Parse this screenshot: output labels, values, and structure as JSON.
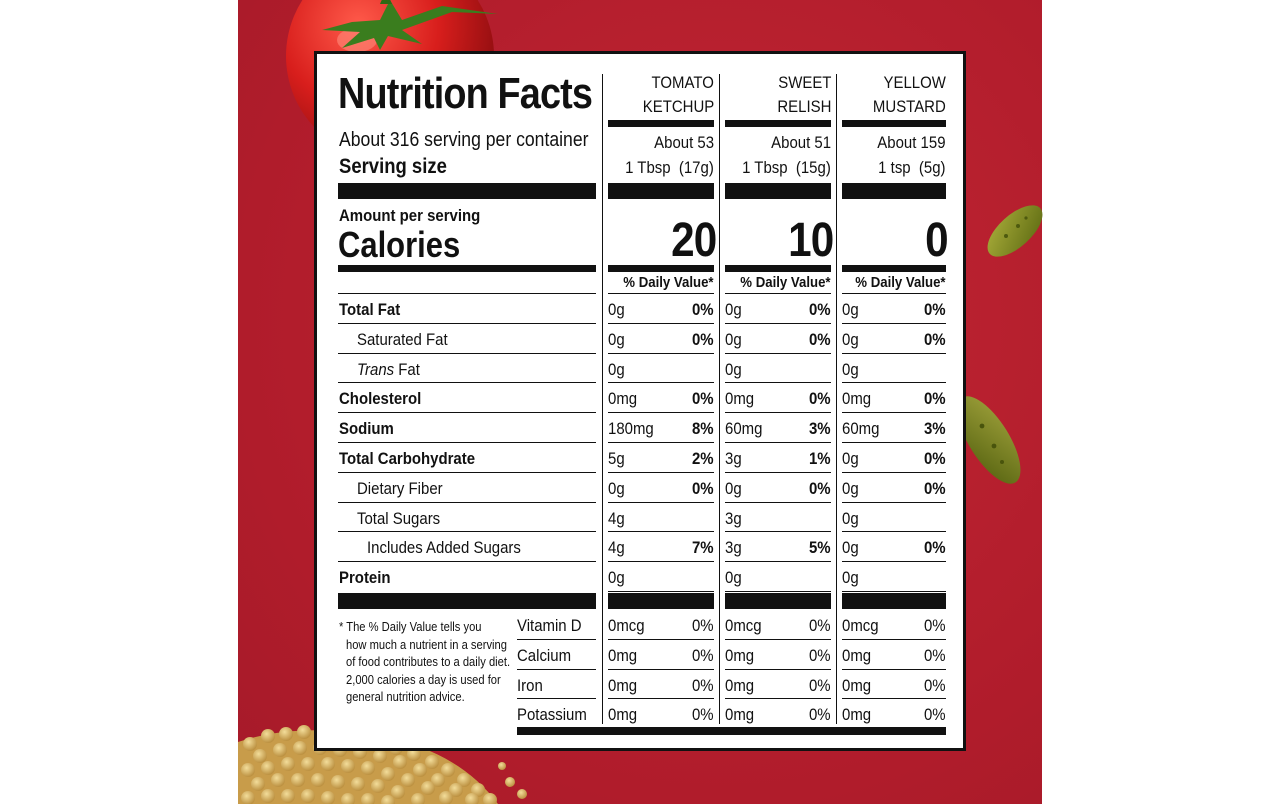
{
  "title": "Nutrition Facts",
  "servings_per_container": "About 316 serving per container",
  "serving_size_label": "Serving size",
  "amount_per_serving": "Amount per serving",
  "calories_label": "Calories",
  "dv_header": "% Daily Value*",
  "products": [
    {
      "name_line1": "TOMATO",
      "name_line2": "KETCHUP",
      "servings": "About 53",
      "serving_size": "1 Tbsp  (17g)",
      "calories": "20"
    },
    {
      "name_line1": "SWEET",
      "name_line2": "RELISH",
      "servings": "About 51",
      "serving_size": "1 Tbsp  (15g)",
      "calories": "10"
    },
    {
      "name_line1": "YELLOW",
      "name_line2": "MUSTARD",
      "servings": "About 159",
      "serving_size": "1 tsp  (5g)",
      "calories": "0"
    }
  ],
  "nutrients": [
    {
      "label": "Total Fat",
      "values": [
        [
          "0g",
          "0%"
        ],
        [
          "0g",
          "0%"
        ],
        [
          "0g",
          "0%"
        ]
      ]
    },
    {
      "label": "Saturated Fat",
      "values": [
        [
          "0g",
          "0%"
        ],
        [
          "0g",
          "0%"
        ],
        [
          "0g",
          "0%"
        ]
      ]
    },
    {
      "label": "Trans",
      "label_suffix": " Fat",
      "values": [
        [
          "0g",
          ""
        ],
        [
          "0g",
          ""
        ],
        [
          "0g",
          ""
        ]
      ]
    },
    {
      "label": "Cholesterol",
      "values": [
        [
          "0mg",
          "0%"
        ],
        [
          "0mg",
          "0%"
        ],
        [
          "0mg",
          "0%"
        ]
      ]
    },
    {
      "label": "Sodium",
      "values": [
        [
          "180mg",
          "8%"
        ],
        [
          "60mg",
          "3%"
        ],
        [
          "60mg",
          "3%"
        ]
      ]
    },
    {
      "label": "Total Carbohydrate",
      "values": [
        [
          "5g",
          "2%"
        ],
        [
          "3g",
          "1%"
        ],
        [
          "0g",
          "0%"
        ]
      ]
    },
    {
      "label": "Dietary Fiber",
      "values": [
        [
          "0g",
          "0%"
        ],
        [
          "0g",
          "0%"
        ],
        [
          "0g",
          "0%"
        ]
      ]
    },
    {
      "label": "Total Sugars",
      "values": [
        [
          "4g",
          ""
        ],
        [
          "3g",
          ""
        ],
        [
          "0g",
          ""
        ]
      ]
    },
    {
      "label": "Includes Added Sugars",
      "values": [
        [
          "4g",
          "7%"
        ],
        [
          "3g",
          "5%"
        ],
        [
          "0g",
          "0%"
        ]
      ]
    },
    {
      "label": "Protein",
      "values": [
        [
          "0g",
          ""
        ],
        [
          "0g",
          ""
        ],
        [
          "0g",
          ""
        ]
      ]
    }
  ],
  "vitamins": [
    {
      "label": "Vitamin D",
      "values": [
        [
          "0mcg",
          "0%"
        ],
        [
          "0mcg",
          "0%"
        ],
        [
          "0mcg",
          "0%"
        ]
      ]
    },
    {
      "label": "Calcium",
      "values": [
        [
          "0mg",
          "0%"
        ],
        [
          "0mg",
          "0%"
        ],
        [
          "0mg",
          "0%"
        ]
      ]
    },
    {
      "label": "Iron",
      "values": [
        [
          "0mg",
          "0%"
        ],
        [
          "0mg",
          "0%"
        ],
        [
          "0mg",
          "0%"
        ]
      ]
    },
    {
      "label": "Potassium",
      "values": [
        [
          "0mg",
          "0%"
        ],
        [
          "0mg",
          "0%"
        ],
        [
          "0mg",
          "0%"
        ]
      ]
    }
  ],
  "footnote": [
    "* The % Daily Value tells you",
    "how much a nutrient in a serving",
    "of food contributes to a daily diet.",
    "2,000 calories a day is used for",
    "general nutrition advice."
  ],
  "colors": {
    "background": "#b81f2e",
    "ink": "#111111",
    "label": "#ffffff"
  },
  "decorations": [
    "tomato-icon",
    "pickle-icon",
    "pickle-icon",
    "mustard-seeds-icon"
  ]
}
